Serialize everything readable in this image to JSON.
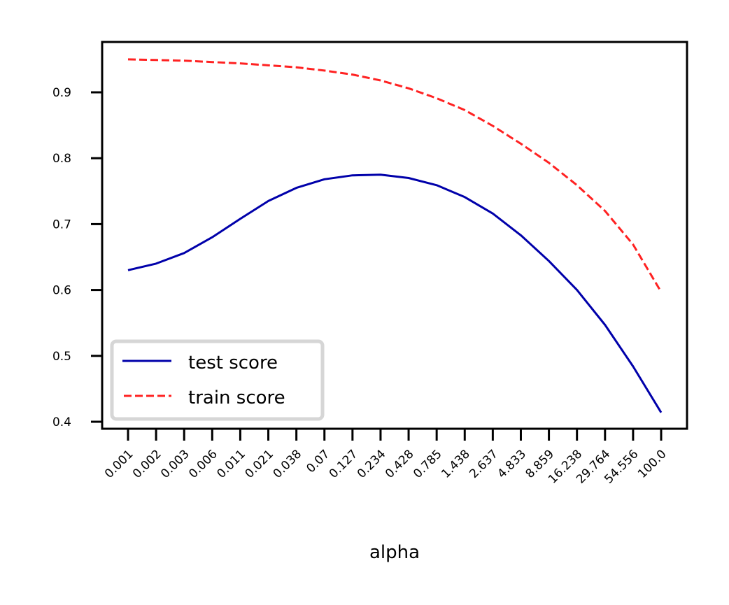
{
  "chart_data": {
    "type": "line",
    "title": "",
    "xlabel": "alpha",
    "ylabel": "",
    "categories": [
      "0.001",
      "0.002",
      "0.003",
      "0.006",
      "0.011",
      "0.021",
      "0.038",
      "0.07",
      "0.127",
      "0.234",
      "0.428",
      "0.785",
      "1.438",
      "2.637",
      "4.833",
      "8.859",
      "16.238",
      "29.764",
      "54.556",
      "100.0"
    ],
    "series": [
      {
        "name": "test score",
        "color": "#0000aa",
        "style": "solid",
        "values": [
          0.63,
          0.64,
          0.656,
          0.68,
          0.708,
          0.735,
          0.755,
          0.768,
          0.774,
          0.775,
          0.77,
          0.759,
          0.741,
          0.716,
          0.683,
          0.644,
          0.6,
          0.547,
          0.484,
          0.414
        ]
      },
      {
        "name": "train score",
        "color": "#ff2222",
        "style": "dashed",
        "values": [
          0.95,
          0.949,
          0.948,
          0.946,
          0.944,
          0.941,
          0.938,
          0.933,
          0.927,
          0.918,
          0.906,
          0.891,
          0.873,
          0.849,
          0.822,
          0.793,
          0.759,
          0.72,
          0.669,
          0.597
        ]
      }
    ],
    "yticks": [
      "0.4",
      "0.5",
      "0.6",
      "0.7",
      "0.8",
      "0.9"
    ],
    "ylim": [
      0.397,
      0.978
    ],
    "grid": false,
    "legend_position": "lower left",
    "xtick_rotation": 45
  }
}
